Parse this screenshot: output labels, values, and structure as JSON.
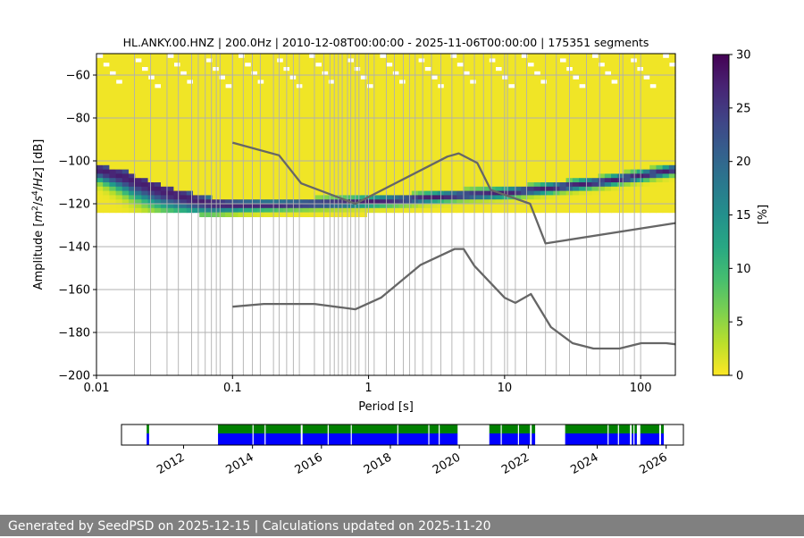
{
  "title": "HL.ANKY.00.HNZ | 200.0Hz | 2010-12-08T00:00:00 - 2025-11-06T00:00:00 | 175351 segments",
  "footer": "Generated by SeedPSD on 2025-12-15 | Calculations updated on 2025-11-20",
  "chart_data": [
    {
      "type": "heatmap",
      "title": "HL.ANKY.00.HNZ | 200.0Hz | 2010-12-08T00:00:00 - 2025-11-06T00:00:00 | 175351 segments",
      "xlabel": "Period [s]",
      "ylabel_parts": [
        "Amplitude [",
        "m",
        "2",
        "/",
        "s",
        "4",
        "/",
        "Hz",
        "] [dB]"
      ],
      "x_scale": "log",
      "xlim": [
        0.01,
        180
      ],
      "ylim": [
        -200,
        -50
      ],
      "x_ticks": [
        0.01,
        0.1,
        1,
        10,
        100
      ],
      "x_tick_labels": [
        "0.01",
        "0.1",
        "1",
        "10",
        "100"
      ],
      "y_ticks": [
        -200,
        -180,
        -160,
        -140,
        -120,
        -100,
        -80,
        -60
      ],
      "y_tick_labels": [
        "−200",
        "−180",
        "−160",
        "−140",
        "−120",
        "−100",
        "−80",
        "−60"
      ],
      "grid": true,
      "colormap": "viridis_r",
      "colorbar": {
        "label": "[%]",
        "range": [
          0,
          30
        ],
        "ticks": [
          0,
          5,
          10,
          15,
          20,
          25,
          30
        ],
        "tick_labels": [
          "0",
          "5",
          "10",
          "15",
          "20",
          "25",
          "30"
        ]
      },
      "mode_curve": {
        "name": "mode",
        "x": [
          0.01,
          0.015,
          0.02,
          0.03,
          0.05,
          0.07,
          0.1,
          0.2,
          0.4,
          0.7,
          1,
          2,
          3,
          5,
          10,
          20,
          50,
          100,
          150,
          180
        ],
        "y": [
          -104,
          -107,
          -110,
          -114,
          -118,
          -120,
          -120.5,
          -120.5,
          -120,
          -119.5,
          -119,
          -118,
          -117,
          -116,
          -115,
          -113,
          -110,
          -107,
          -105,
          -104
        ]
      },
      "nhnm": {
        "name": "NHNM",
        "x": [
          0.1,
          0.22,
          0.32,
          0.8,
          3.8,
          4.6,
          6.3,
          7.9,
          15.4,
          20,
          180
        ],
        "y": [
          -91.5,
          -97.4,
          -110.5,
          -120,
          -98,
          -96.5,
          -101,
          -113.5,
          -120,
          -138.5,
          -129
        ]
      },
      "nlnm": {
        "name": "NLNM",
        "x": [
          0.1,
          0.17,
          0.4,
          0.8,
          1.24,
          2.4,
          4.3,
          5,
          6,
          10,
          12,
          15.6,
          21.9,
          31.6,
          45,
          70,
          101,
          154,
          180
        ],
        "y": [
          -168,
          -166.7,
          -166.7,
          -169.2,
          -163.7,
          -148.6,
          -141.1,
          -141.1,
          -149,
          -163.8,
          -166.2,
          -162.1,
          -177.5,
          -185,
          -187.5,
          -187.5,
          -185,
          -185,
          -185.5
        ]
      },
      "period_bands": [
        0.019,
        0.025,
        0.033,
        0.04,
        0.05,
        0.056,
        0.063,
        0.07,
        0.076,
        0.081,
        0.1,
        0.12,
        0.14,
        0.16,
        0.2,
        0.22,
        0.25,
        0.28,
        0.31,
        0.4,
        0.47,
        0.52,
        0.56,
        0.6,
        0.64,
        0.7,
        0.74,
        0.8,
        0.85,
        0.95,
        1.1,
        1.35,
        1.55,
        1.8,
        2.0,
        2.2,
        2.5,
        2.9,
        3.4,
        4.1,
        5.0,
        6.0,
        7.0,
        8.0,
        10.5,
        12.0,
        14.5,
        20,
        24,
        30,
        40,
        50,
        70,
        74,
        90
      ]
    },
    {
      "type": "timeline",
      "x_ticks": [
        2012,
        2014,
        2016,
        2018,
        2020,
        2022,
        2024,
        2026
      ],
      "x_tick_labels": [
        "2012",
        "2014",
        "2016",
        "2018",
        "2020",
        "2022",
        "2024",
        "2026"
      ],
      "xlim": [
        2010.2,
        2026.5
      ],
      "colors": {
        "top": "#008000",
        "bottom": "#0000ff"
      },
      "segments": [
        [
          2010.93,
          2011.0
        ],
        [
          2013.0,
          2015.4
        ],
        [
          2015.45,
          2019.95
        ],
        [
          2020.87,
          2022.05
        ],
        [
          2022.1,
          2022.2
        ],
        [
          2023.07,
          2024.95
        ],
        [
          2025.0,
          2025.15
        ],
        [
          2025.25,
          2025.8
        ],
        [
          2025.85,
          2025.93
        ]
      ],
      "gaps": [
        2014.0,
        2014.35,
        2015.42,
        2016.18,
        2016.85,
        2018.2,
        2019.1,
        2019.4,
        2021.2,
        2021.7,
        2024.3,
        2024.6,
        2025.05
      ]
    }
  ]
}
